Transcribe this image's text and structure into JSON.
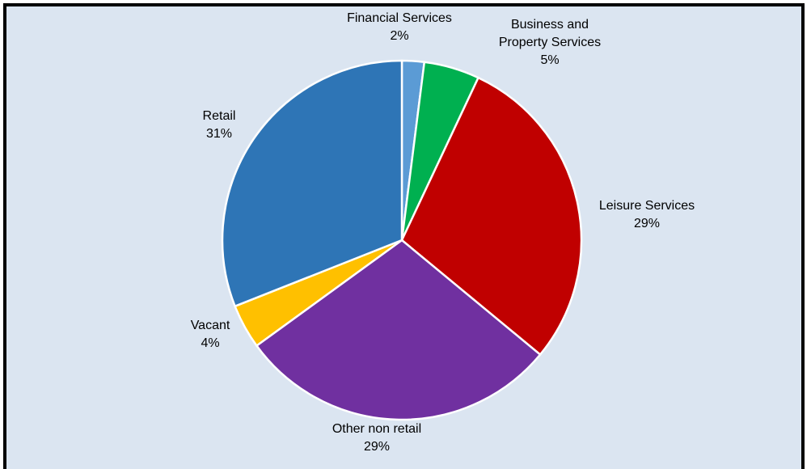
{
  "chart_data": {
    "type": "pie",
    "start_angle_deg": 0,
    "direction": "clockwise",
    "slices": [
      {
        "label": "Financial Services",
        "value": 2,
        "value_label": "2%",
        "color": "#5b9bd5"
      },
      {
        "label": "Business and Property Services",
        "label_lines": [
          "Business and",
          "Property Services"
        ],
        "value": 5,
        "value_label": "5%",
        "color": "#00b050"
      },
      {
        "label": "Leisure Services",
        "value": 29,
        "value_label": "29%",
        "color": "#c00000"
      },
      {
        "label": "Other non retail",
        "value": 29,
        "value_label": "29%",
        "color": "#7030a0"
      },
      {
        "label": "Vacant",
        "value": 4,
        "value_label": "4%",
        "color": "#ffc000"
      },
      {
        "label": "Retail",
        "value": 31,
        "value_label": "31%",
        "color": "#2e75b6"
      }
    ],
    "background_color": "#dbe5f1",
    "border_color": "#000000"
  }
}
